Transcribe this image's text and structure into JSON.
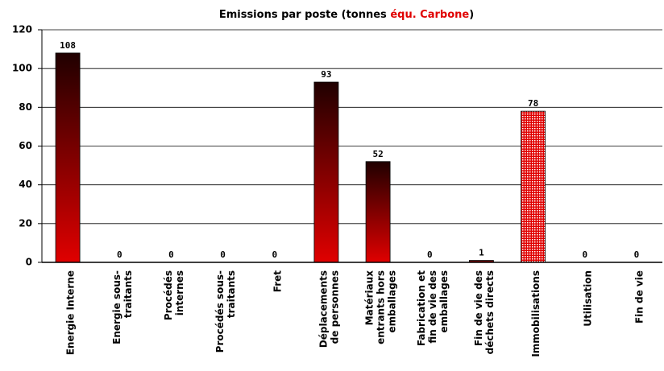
{
  "chart_data": {
    "type": "bar",
    "title": [
      {
        "text": "Emissions par poste (tonnes ",
        "color": "#000000"
      },
      {
        "text": "équ. Carbone",
        "color": "#e00000"
      },
      {
        "text": ")",
        "color": "#000000"
      }
    ],
    "categories": [
      [
        "Energie Interne"
      ],
      [
        "Energie sous-",
        "traitants"
      ],
      [
        "Procédés",
        "internes"
      ],
      [
        "Procédés sous-",
        "traitants"
      ],
      [
        "Fret"
      ],
      [
        "Déplacements",
        "de personnes"
      ],
      [
        "Matériaux",
        "entrants hors",
        "emballages"
      ],
      [
        "Fabrication et",
        "fin de vie des",
        "emballages"
      ],
      [
        "Fin de vie des",
        "déchets directs"
      ],
      [
        "Immobilisations"
      ],
      [
        "Utilisation"
      ],
      [
        "Fin de vie"
      ]
    ],
    "values": [
      108,
      0,
      0,
      0,
      0,
      93,
      52,
      0,
      1,
      78,
      0,
      0
    ],
    "fills": [
      "gradient",
      "gradient",
      "gradient",
      "gradient",
      "gradient",
      "gradient",
      "gradient",
      "gradient",
      "gradient",
      "dots",
      "gradient",
      "gradient"
    ],
    "color": "#e00000",
    "top_color": "#200000",
    "ylim": [
      0,
      120
    ],
    "yticks": [
      0,
      20,
      40,
      60,
      80,
      100,
      120
    ],
    "grid": true
  }
}
